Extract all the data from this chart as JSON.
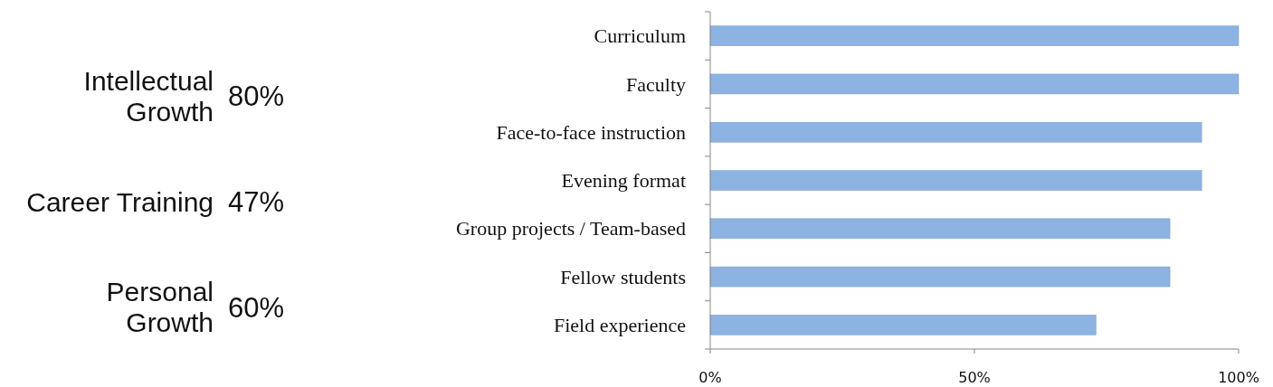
{
  "chart_data": [
    {
      "type": "other",
      "categories": [
        "Intellectual Growth",
        "Career Training",
        "Personal Growth"
      ],
      "values": [
        80,
        47,
        60
      ],
      "value_labels": [
        "80%",
        "47%",
        "60%"
      ]
    },
    {
      "type": "bar",
      "orientation": "horizontal",
      "categories": [
        "Curriculum",
        "Faculty",
        "Face-to-face instruction",
        "Evening format",
        "Group projects / Team-based",
        "Fellow students",
        "Field experience"
      ],
      "values": [
        100,
        100,
        93,
        93,
        87,
        87,
        73
      ],
      "color": "#8db3e2",
      "xlim": [
        0,
        100
      ],
      "xticks": [
        {
          "value": 0,
          "label": "0%"
        },
        {
          "value": 50,
          "label": "50%"
        },
        {
          "value": 100,
          "label": "100%"
        }
      ],
      "grid": false
    }
  ]
}
